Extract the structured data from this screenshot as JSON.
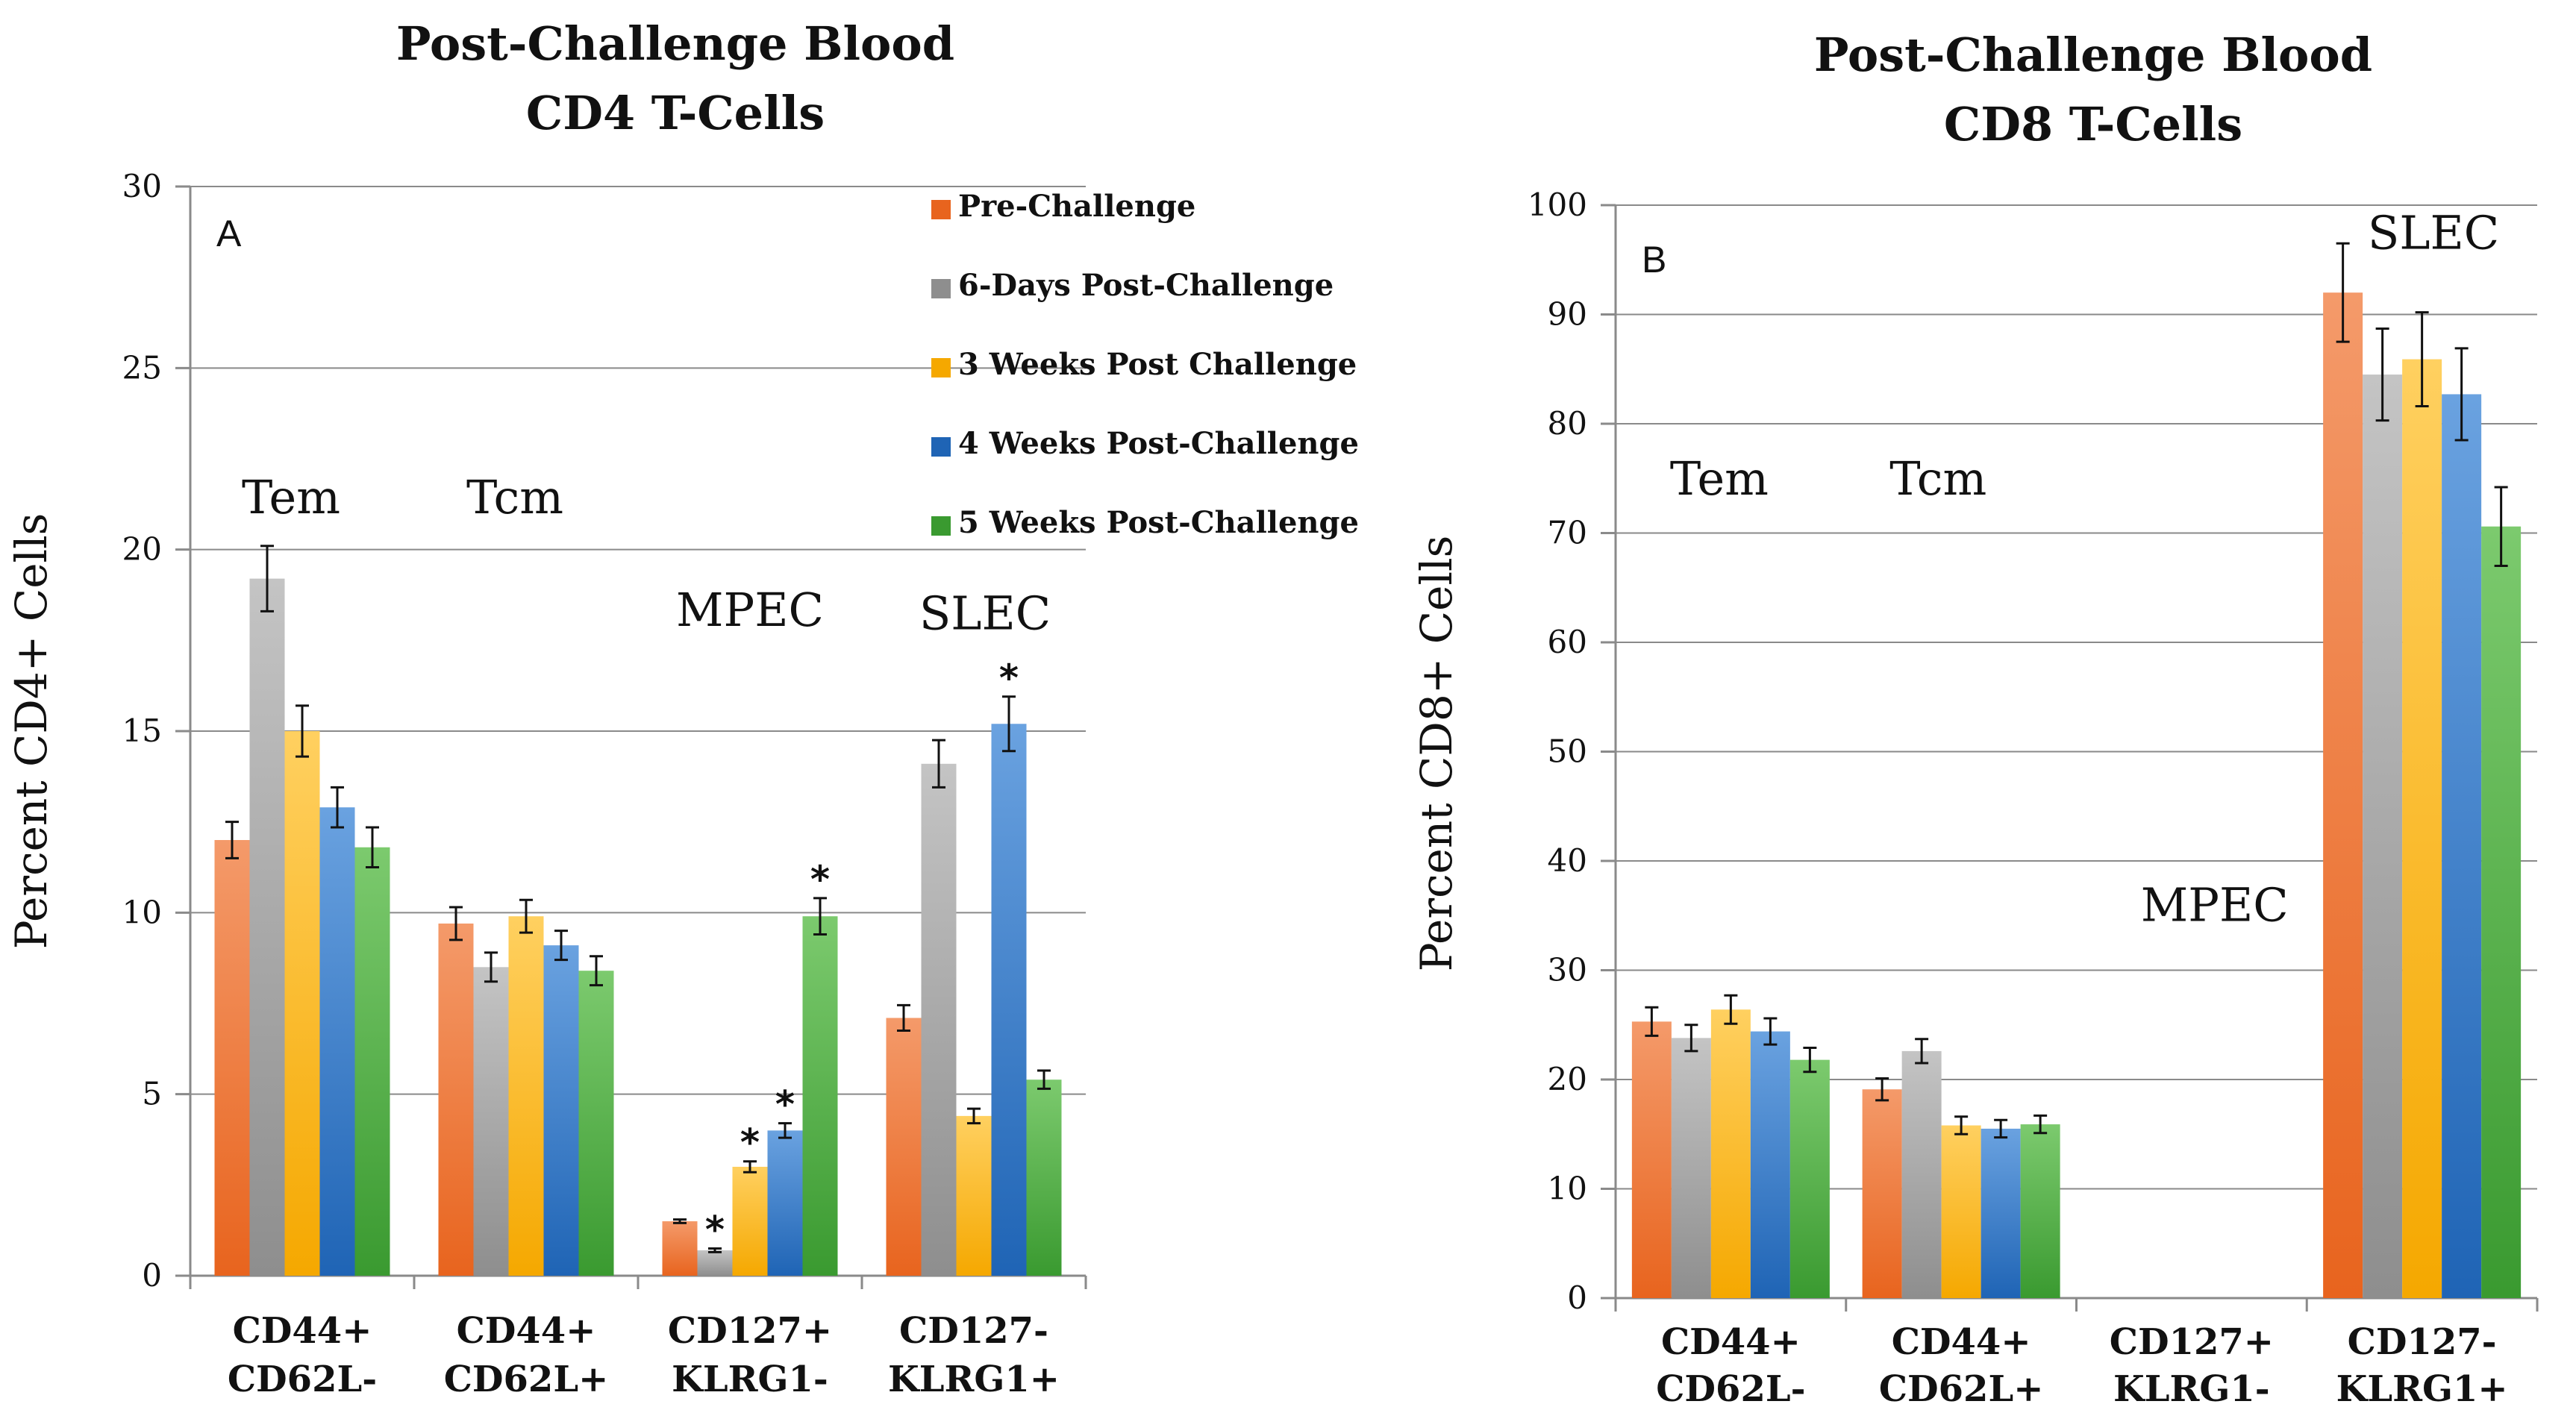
{
  "colors": {
    "series": [
      "#e8641e",
      "#8e8e8e",
      "#f5a800",
      "#1f64b5",
      "#3a9a30"
    ],
    "series_light": [
      "#f49a6a",
      "#c4c4c4",
      "#ffd060",
      "#6aa2e0",
      "#7cca6e"
    ],
    "grid": "#8a8a8a",
    "text": "#111111"
  },
  "chart_data": [
    {
      "type": "bar",
      "panel_label": "A",
      "title": [
        "Post-Challenge Blood",
        "CD4 T-Cells"
      ],
      "ylabel": "Percent CD4+ Cells",
      "ylim": [
        0,
        30
      ],
      "yticks": [
        0,
        5,
        10,
        15,
        20,
        25,
        30
      ],
      "categories": [
        [
          "CD44+",
          "CD62L-"
        ],
        [
          "CD44+",
          "CD62L+"
        ],
        [
          "CD127+",
          "KLRG1-"
        ],
        [
          "CD127-",
          "KLRG1+"
        ]
      ],
      "series": [
        {
          "name": "Pre-Challenge",
          "values": [
            12.0,
            9.7,
            1.5,
            7.1
          ],
          "errors": [
            0.5,
            0.45,
            0.05,
            0.35
          ]
        },
        {
          "name": "6-Days Post-Challenge",
          "values": [
            19.2,
            8.5,
            0.7,
            14.1
          ],
          "errors": [
            0.9,
            0.4,
            0.05,
            0.65
          ]
        },
        {
          "name": "3 Weeks Post Challenge",
          "values": [
            15.0,
            9.9,
            3.0,
            4.4
          ],
          "errors": [
            0.7,
            0.45,
            0.15,
            0.2
          ]
        },
        {
          "name": "4 Weeks Post-Challenge",
          "values": [
            12.9,
            9.1,
            4.0,
            15.2
          ],
          "errors": [
            0.55,
            0.4,
            0.2,
            0.75
          ]
        },
        {
          "name": "5 Weeks Post-Challenge",
          "values": [
            11.8,
            8.4,
            9.9,
            5.4
          ],
          "errors": [
            0.55,
            0.4,
            0.5,
            0.25
          ]
        }
      ],
      "significance": [
        {
          "category": 2,
          "series": 1,
          "label": "*"
        },
        {
          "category": 2,
          "series": 2,
          "label": "*"
        },
        {
          "category": 2,
          "series": 3,
          "label": "*"
        },
        {
          "category": 2,
          "series": 4,
          "label": "*"
        },
        {
          "category": 3,
          "series": 3,
          "label": "*"
        }
      ],
      "annotations": [
        {
          "text": "Tem",
          "x": -0.05,
          "y": 21.0
        },
        {
          "text": "Tcm",
          "x": 0.95,
          "y": 21.0
        },
        {
          "text": "MPEC",
          "x": 2.0,
          "y": 17.9
        },
        {
          "text": "SLEC",
          "x": 3.05,
          "y": 17.8
        }
      ],
      "legend_position": "top-right"
    },
    {
      "type": "bar",
      "panel_label": "B",
      "title": [
        "Post-Challenge Blood",
        "CD8 T-Cells"
      ],
      "ylabel": "Percent CD8+ Cells",
      "ylim": [
        0,
        100
      ],
      "yticks": [
        0,
        10,
        20,
        30,
        40,
        50,
        60,
        70,
        80,
        90,
        100
      ],
      "categories": [
        [
          "CD44+",
          "CD62L-"
        ],
        [
          "CD44+",
          "CD62L+"
        ],
        [
          "CD127+",
          "KLRG1-"
        ],
        [
          "CD127-",
          "KLRG1+"
        ]
      ],
      "series": [
        {
          "name": "Pre-Challenge",
          "values": [
            25.3,
            19.1,
            null,
            92.0
          ],
          "errors": [
            1.3,
            1.0,
            null,
            4.5
          ]
        },
        {
          "name": "6-Days Post-Challenge",
          "values": [
            23.8,
            22.6,
            null,
            84.5
          ],
          "errors": [
            1.2,
            1.1,
            null,
            4.2
          ]
        },
        {
          "name": "3 Weeks Post Challenge",
          "values": [
            26.4,
            15.8,
            null,
            85.9
          ],
          "errors": [
            1.3,
            0.8,
            null,
            4.3
          ]
        },
        {
          "name": "4 Weeks Post-Challenge",
          "values": [
            24.4,
            15.5,
            null,
            82.7
          ],
          "errors": [
            1.2,
            0.8,
            null,
            4.2
          ]
        },
        {
          "name": "5 Weeks Post-Challenge",
          "values": [
            21.8,
            15.9,
            null,
            70.6
          ],
          "errors": [
            1.1,
            0.8,
            null,
            3.6
          ]
        }
      ],
      "annotations": [
        {
          "text": "Tem",
          "x": -0.05,
          "y": 73.5
        },
        {
          "text": "Tcm",
          "x": 0.9,
          "y": 73.5
        },
        {
          "text": "MPEC",
          "x": 2.1,
          "y": 34.5
        },
        {
          "text": "SLEC",
          "x": 3.05,
          "y": 96.0
        }
      ]
    }
  ]
}
